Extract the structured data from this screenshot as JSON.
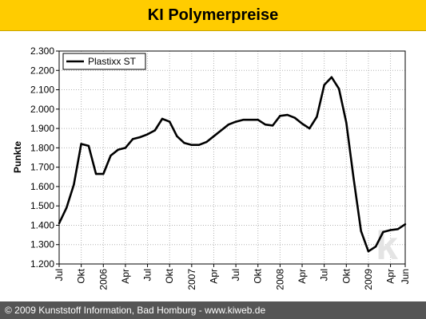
{
  "header": {
    "title": "KI Polymerpreise"
  },
  "footer": {
    "text": "© 2009 Kunststoff Information, Bad Homburg - www.kiweb.de"
  },
  "watermark": {
    "text": "k"
  },
  "colors": {
    "title_bar": "#FFCC00",
    "footer_bg": "#555555",
    "line": "#000000",
    "grid": "#b4b4b4"
  },
  "chart_data": {
    "type": "line",
    "title": "",
    "xlabel": "",
    "ylabel": "Punkte",
    "ylim": [
      1200,
      2300
    ],
    "yticks": [
      "2.300",
      "2.200",
      "2.100",
      "2.000",
      "1.900",
      "1.800",
      "1.700",
      "1.600",
      "1.500",
      "1.400",
      "1.300",
      "1.200"
    ],
    "x_ticks": [
      "Jul",
      "Okt",
      "2006",
      "Apr",
      "Jul",
      "Okt",
      "2007",
      "Apr",
      "Jul",
      "Okt",
      "2008",
      "Apr",
      "Jul",
      "Okt",
      "2009",
      "Apr",
      "Jun"
    ],
    "grid": true,
    "legend_position": "top-left",
    "series": [
      {
        "name": "Plastixx ST",
        "x": [
          "2005-07",
          "2005-08",
          "2005-09",
          "2005-10",
          "2005-11",
          "2005-12",
          "2006-01",
          "2006-02",
          "2006-03",
          "2006-04",
          "2006-05",
          "2006-06",
          "2006-07",
          "2006-08",
          "2006-09",
          "2006-10",
          "2006-11",
          "2006-12",
          "2007-01",
          "2007-02",
          "2007-03",
          "2007-04",
          "2007-05",
          "2007-06",
          "2007-07",
          "2007-08",
          "2007-09",
          "2007-10",
          "2007-11",
          "2007-12",
          "2008-01",
          "2008-02",
          "2008-03",
          "2008-04",
          "2008-05",
          "2008-06",
          "2008-07",
          "2008-08",
          "2008-09",
          "2008-10",
          "2008-11",
          "2008-12",
          "2009-01",
          "2009-02",
          "2009-03",
          "2009-04",
          "2009-05",
          "2009-06"
        ],
        "values": [
          1410,
          1490,
          1610,
          1820,
          1810,
          1665,
          1665,
          1760,
          1790,
          1800,
          1845,
          1855,
          1870,
          1890,
          1950,
          1935,
          1860,
          1825,
          1815,
          1815,
          1830,
          1860,
          1890,
          1920,
          1935,
          1945,
          1945,
          1945,
          1920,
          1915,
          1965,
          1970,
          1955,
          1925,
          1900,
          1960,
          2125,
          2165,
          2105,
          1930,
          1640,
          1370,
          1265,
          1290,
          1365,
          1375,
          1380,
          1405
        ]
      }
    ]
  }
}
